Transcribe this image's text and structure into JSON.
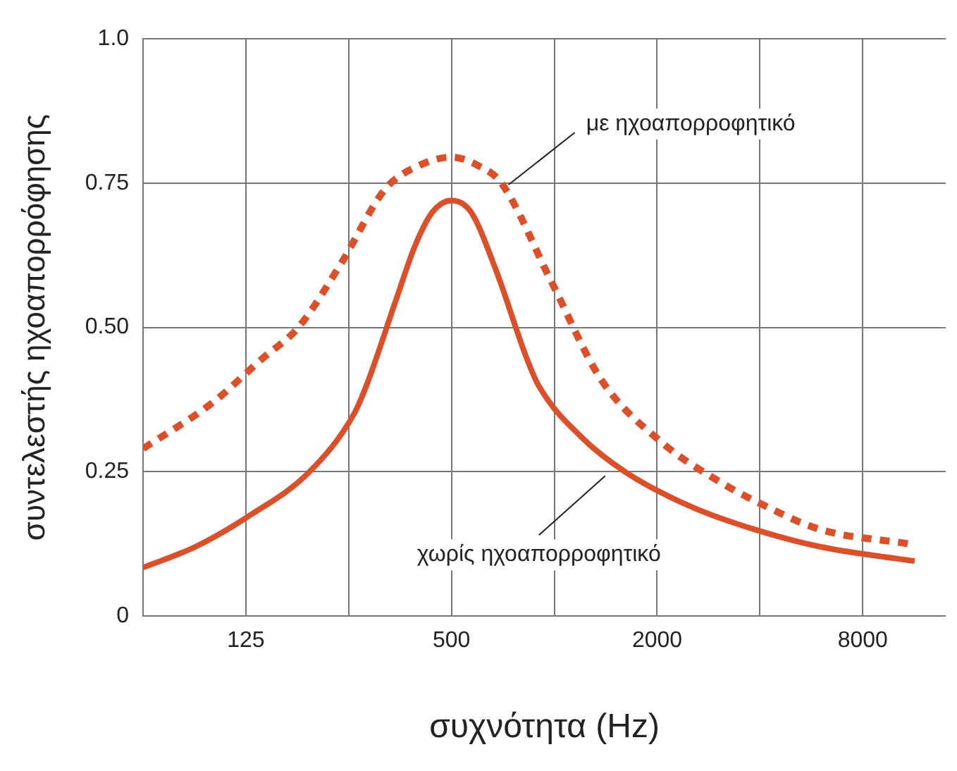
{
  "chart_data": {
    "type": "line",
    "xlabel": "συχνότητα (Hz)",
    "ylabel": "συντελεστής ηχοαπορρόφησης",
    "log": "x",
    "xlim": [
      62.5,
      14000
    ],
    "ylim": [
      0,
      1
    ],
    "xticks": [
      125,
      {
        "value": 250,
        "label": null
      },
      500,
      {
        "value": 1000,
        "label": null
      },
      2000,
      {
        "value": 4000,
        "label": null
      },
      8000
    ],
    "yticks": [
      0,
      0.25,
      {
        "value": 0.5,
        "label": "0.50"
      },
      0.75,
      {
        "value": 1,
        "label": "1.0"
      }
    ],
    "grid": true,
    "legend": false,
    "marker": "none",
    "series": [
      {
        "color": "#d9502a",
        "line_style": "dashed",
        "x": [
          62.5,
          100,
          139,
          178,
          237,
          320,
          400,
          500,
          600,
          700,
          979,
          1370,
          2070,
          3000,
          3850,
          6000,
          10900
        ],
        "values": [
          0.29,
          0.37,
          0.445,
          0.5,
          0.61,
          0.74,
          0.78,
          0.795,
          0.78,
          0.75,
          0.58,
          0.41,
          0.3,
          0.235,
          0.2,
          0.15,
          0.125
        ]
      },
      {
        "color": "#d9502a",
        "line_style": "solid",
        "x": [
          62.5,
          89,
          125,
          192,
          259,
          282,
          345,
          390,
          440,
          500,
          570,
          674,
          832,
          898,
          1200,
          1610,
          2500,
          3850,
          6000,
          11350
        ],
        "values": [
          0.084,
          0.12,
          0.17,
          0.25,
          0.35,
          0.4,
          0.55,
          0.64,
          0.7,
          0.72,
          0.7,
          0.6,
          0.445,
          0.4,
          0.31,
          0.25,
          0.19,
          0.15,
          0.12,
          0.095
        ]
      }
    ],
    "annotations": [
      {
        "text": "με ηχοαπορροφητικό",
        "x": 714,
        "y": 0.74
      },
      {
        "text": "χωρίς ηχοαπορροφητικό",
        "x": 1450,
        "y": 0.25
      }
    ]
  }
}
